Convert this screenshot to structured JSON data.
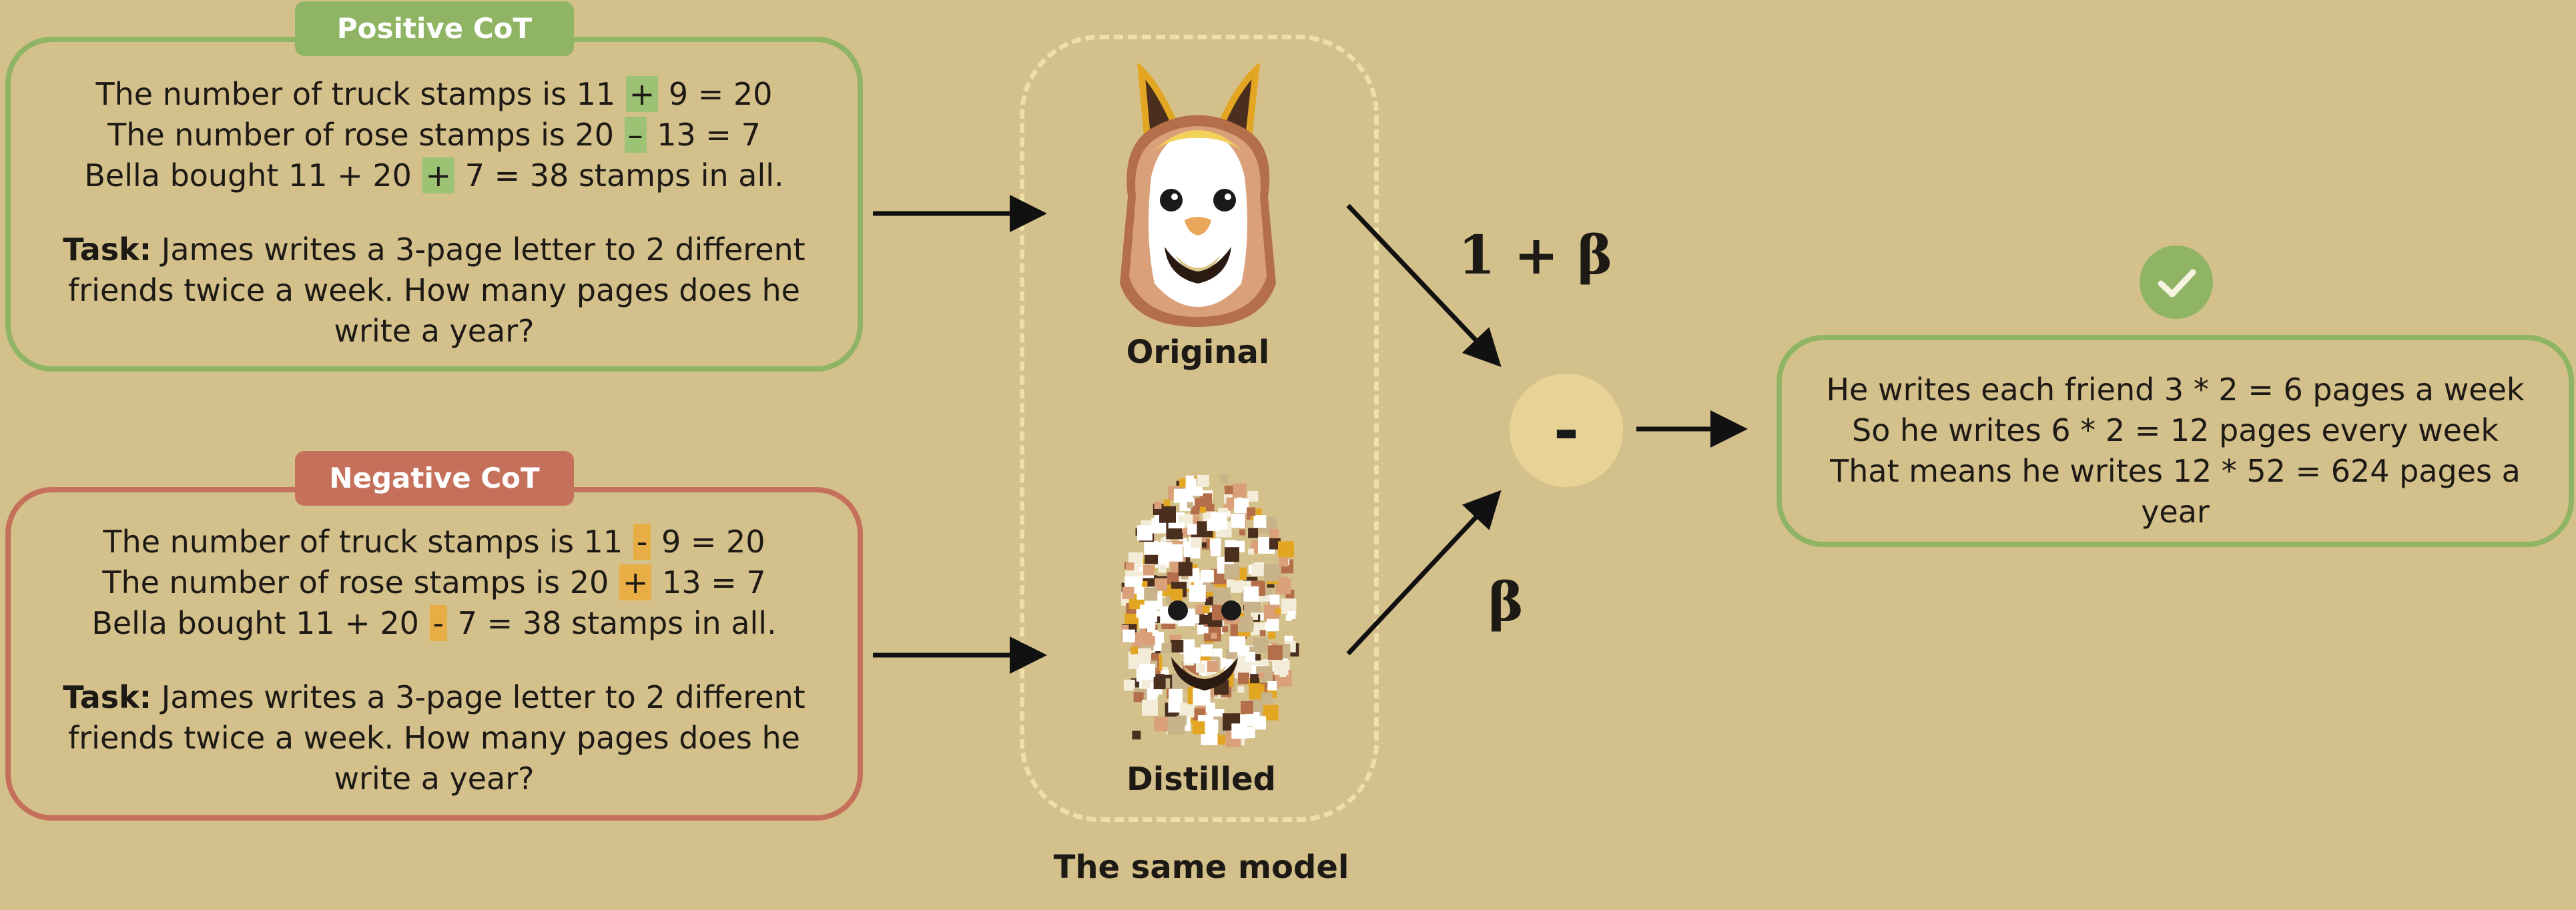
{
  "positive": {
    "tag": "Positive CoT",
    "lines": [
      {
        "a": "The number of truck stamps is 11 ",
        "op": "+",
        "b": " 9 = 20"
      },
      {
        "a": "The number of rose stamps is 20 ",
        "op": "–",
        "b": " 13 = 7"
      },
      {
        "a": "Bella bought 11 + 20 ",
        "op": "+",
        "b": " 7 = 38 stamps in all."
      }
    ],
    "task_label": "Task:",
    "task_line1": " James writes a 3-page letter to 2 different",
    "task_line2": "friends twice a week. How many pages does he",
    "task_line3": "write a year?"
  },
  "negative": {
    "tag": "Negative CoT",
    "lines": [
      {
        "a": "The number of truck stamps is 11 ",
        "op": "-",
        "b": " 9 = 20"
      },
      {
        "a": "The number of rose stamps is 20 ",
        "op": "+",
        "b": " 13 = 7"
      },
      {
        "a": "Bella bought 11 + 20 ",
        "op": "-",
        "b": " 7 = 38 stamps in all."
      }
    ],
    "task_label": "Task:",
    "task_line1": " James writes a 3-page letter to 2 different",
    "task_line2": "friends twice a week. How many pages does he",
    "task_line3": "write a year?"
  },
  "models": {
    "original_label": "Original",
    "distilled_label": "Distilled",
    "group_label": "The same model"
  },
  "weights": {
    "positive": "1 + β",
    "negative": "β"
  },
  "operator": "-",
  "result": {
    "line1": "He writes each friend 3 * 2 = 6 pages a week",
    "line2": "So he writes 6 * 2 = 12 pages every week",
    "line3": "That means he writes 12 * 52 = 624 pages a",
    "line4": "year"
  },
  "colors": {
    "background": "#d4c08a",
    "positive": "#8fb564",
    "negative": "#c4705a",
    "highlight_negative": "#e9ad46",
    "dashed": "#ecdfa8"
  },
  "icons": {
    "model": "llama-icon",
    "check": "checkmark-icon"
  }
}
